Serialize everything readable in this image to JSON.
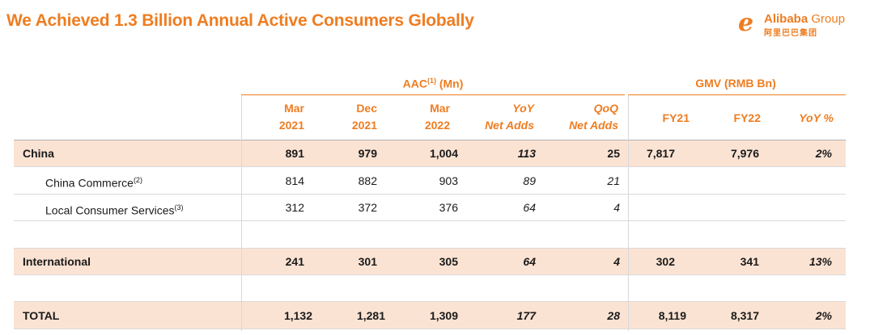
{
  "title": "We Achieved 1.3 Billion Annual Active Consumers Globally",
  "logo": {
    "brand_bold": "Alibaba",
    "brand_rest": " Group",
    "brand_cn": "阿里巴巴集团",
    "icon": "alibaba-logo-icon"
  },
  "groups": {
    "aac": {
      "label": "AAC",
      "sup": "(1)",
      "unit": " (Mn)"
    },
    "gmv": {
      "label": "GMV (RMB Bn)"
    }
  },
  "columns": [
    {
      "line1": "Mar",
      "line2": "2021"
    },
    {
      "line1": "Dec",
      "line2": "2021"
    },
    {
      "line1": "Mar",
      "line2": "2022"
    },
    {
      "line1": "YoY",
      "line2": "Net Adds"
    },
    {
      "line1": "QoQ",
      "line2": "Net Adds"
    },
    {
      "line1": "FY21",
      "line2": ""
    },
    {
      "line1": "FY22",
      "line2": ""
    },
    {
      "line1": "YoY %",
      "line2": ""
    }
  ],
  "rows": [
    {
      "label": "China",
      "sup": "",
      "values": [
        "891",
        "979",
        "1,004",
        "113",
        "25",
        "7,817",
        "7,976",
        "2%"
      ]
    },
    {
      "label": "China Commerce",
      "sup": "(2)",
      "values": [
        "814",
        "882",
        "903",
        "89",
        "21",
        "",
        "",
        ""
      ]
    },
    {
      "label": "Local Consumer Services",
      "sup": "(3)",
      "values": [
        "312",
        "372",
        "376",
        "64",
        "4",
        "",
        "",
        ""
      ]
    },
    {
      "label": "International",
      "sup": "",
      "values": [
        "241",
        "301",
        "305",
        "64",
        "4",
        "302",
        "341",
        "13%"
      ]
    },
    {
      "label": "TOTAL",
      "sup": "",
      "values": [
        "1,132",
        "1,281",
        "1,309",
        "177",
        "28",
        "8,119",
        "8,317",
        "2%"
      ]
    }
  ],
  "colors": {
    "accent": "#ee7d21",
    "highlight": "#fbe3d3"
  }
}
